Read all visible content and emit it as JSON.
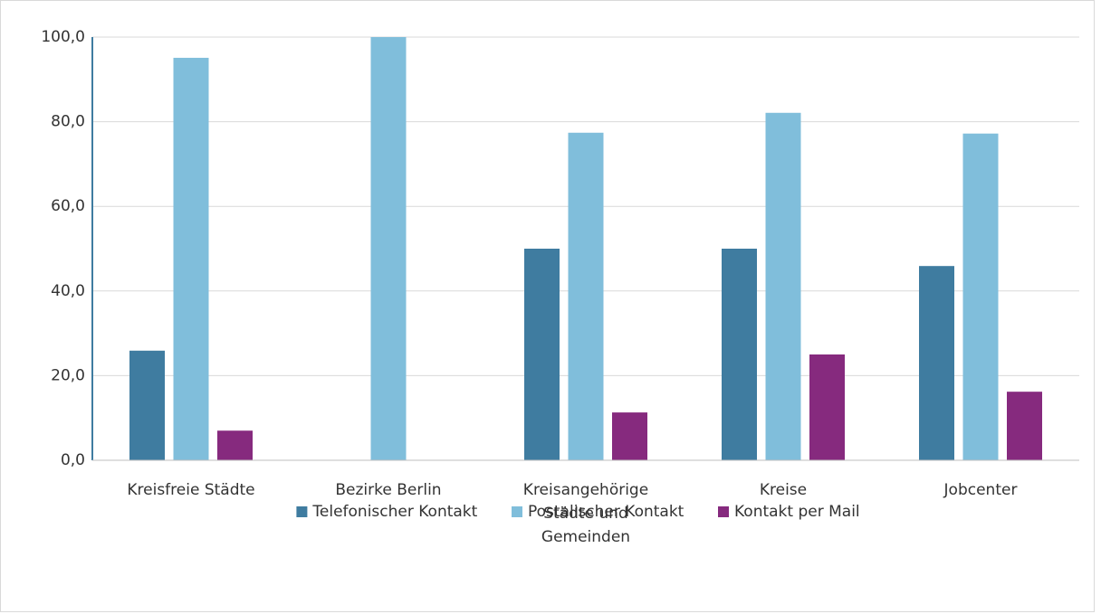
{
  "chart_data": {
    "type": "bar",
    "categories": [
      "Kreisfreie Städte",
      "Bezirke Berlin",
      "Kreisangehörige Städte und Gemeinden",
      "Kreise",
      "Jobcenter"
    ],
    "series": [
      {
        "name": "Telefonischer Kontakt",
        "color": "#3f7ca0",
        "values": [
          25.9,
          0,
          50,
          50,
          45.9
        ]
      },
      {
        "name": "Postalischer Kontakt",
        "color": "#80bedb",
        "values": [
          95.1,
          100,
          77.4,
          82.1,
          77.2
        ]
      },
      {
        "name": "Kontakt per Mail",
        "color": "#862a7e",
        "values": [
          7.0,
          0,
          11.3,
          25.0,
          16.2
        ]
      }
    ],
    "ylim": [
      0,
      100
    ],
    "yticks": [
      {
        "value": 0,
        "label": "0,0"
      },
      {
        "value": 20,
        "label": "20,0"
      },
      {
        "value": 40,
        "label": "40,0"
      },
      {
        "value": 60,
        "label": "60,0"
      },
      {
        "value": 80,
        "label": "80,0"
      },
      {
        "value": 100,
        "label": "100,0"
      }
    ],
    "grid": true,
    "legend": "bottom"
  }
}
